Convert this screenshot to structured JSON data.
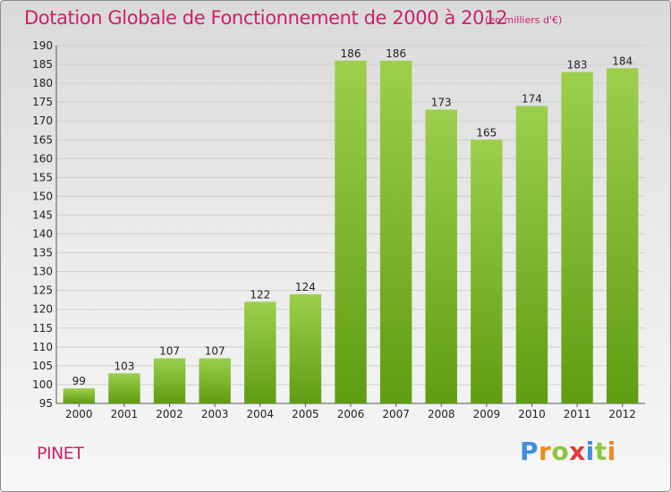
{
  "title": "Dotation Globale de Fonctionnement de 2000 à 2012",
  "unit_note": "(en milliers d'€)",
  "commune": "PINET",
  "logo": {
    "letters": [
      "P",
      "r",
      "o",
      "x",
      "i",
      "t",
      "i"
    ],
    "colors": [
      "#3f8fd8",
      "#f08a1c",
      "#8cc63f",
      "#e23a3a",
      "#3f8fd8",
      "#8cc63f",
      "#f08a1c"
    ]
  },
  "colors": {
    "title": "#cc2266",
    "bar_light": "#9ccf4c",
    "bar_dark": "#5f9d12",
    "grid": "#cfcfcf"
  },
  "chart_data": {
    "type": "bar",
    "title": "Dotation Globale de Fonctionnement de 2000 à 2012",
    "subtitle": "(en milliers d'€)",
    "categories": [
      "2000",
      "2001",
      "2002",
      "2003",
      "2004",
      "2005",
      "2006",
      "2007",
      "2008",
      "2009",
      "2010",
      "2011",
      "2012"
    ],
    "values": [
      99,
      103,
      107,
      107,
      122,
      124,
      186,
      186,
      173,
      165,
      174,
      183,
      184
    ],
    "ylim": [
      95,
      190
    ],
    "yticks": [
      95,
      100,
      105,
      110,
      115,
      120,
      125,
      130,
      135,
      140,
      145,
      150,
      155,
      160,
      165,
      170,
      175,
      180,
      185,
      190
    ],
    "grid": true,
    "xlabel": "",
    "ylabel": ""
  }
}
